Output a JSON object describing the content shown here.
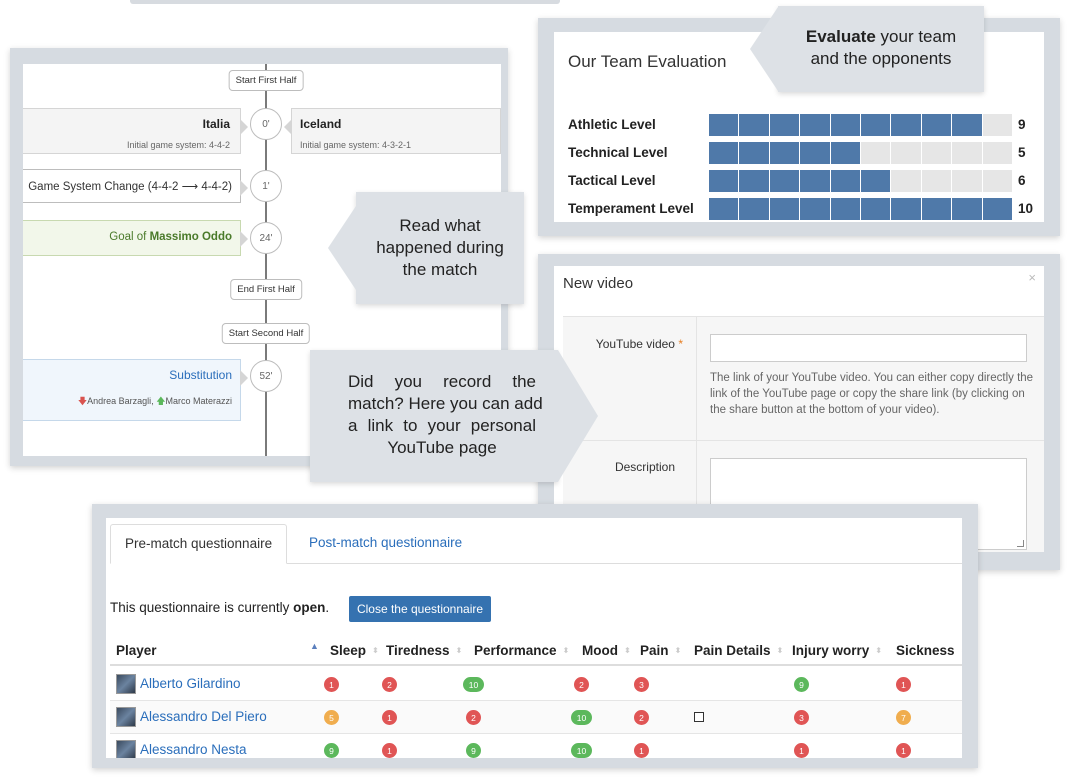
{
  "colors": {
    "bar_on": "#4f79a9",
    "bar_off": "#e6e6e6",
    "red": "#e05555",
    "green": "#5cb85c",
    "orange": "#f0ad4e",
    "link": "#2a6ebb",
    "button": "#3572b0"
  },
  "timeline": {
    "start_first_half": "Start First Half",
    "home_team": "Italia",
    "home_system": "Initial game system: 4-4-2",
    "away_team": "Iceland",
    "away_system": "Initial game system: 4-3-2-1",
    "minute_0": "0'",
    "system_change": "Game System Change (4-4-2 ⟶ 4-4-2)",
    "minute_1": "1'",
    "goal_prefix": "Goal of",
    "goal_player": "Massimo Oddo",
    "minute_24": "24'",
    "end_first_half": "End First Half",
    "start_second_half": "Start Second Half",
    "substitution": "Substitution",
    "sub_out": "Andrea Barzagli",
    "sub_in": "Marco Materazzi",
    "sub_sep": ",",
    "minute_52": "52'"
  },
  "callouts": {
    "evaluate_bold": "Evaluate",
    "evaluate_rest": "your team",
    "evaluate_line2": "and the opponents",
    "read_line1": "Read what",
    "read_line2": "happened during",
    "read_line3": "the match",
    "record_line1": "Did you record the",
    "record_line2": "match? Here you can add",
    "record_line3": "a link to your personal",
    "record_line4": "YouTube page"
  },
  "evaluation": {
    "title": "Our Team Evaluation",
    "max": 10,
    "rows": [
      {
        "label": "Athletic Level",
        "value": 9
      },
      {
        "label": "Technical Level",
        "value": 5
      },
      {
        "label": "Tactical Level",
        "value": 6
      },
      {
        "label": "Temperament Level",
        "value": 10
      }
    ]
  },
  "video": {
    "title": "New video",
    "close": "×",
    "youtube_label": "YouTube video",
    "required_mark": "*",
    "youtube_value": "",
    "help": "The link of your YouTube video. You can either copy directly the link of the YouTube page or copy the share link (by clicking on the share button at the bottom of your video).",
    "description_label": "Description",
    "description_value": ""
  },
  "questionnaire": {
    "tabs": [
      "Pre-match questionnaire",
      "Post-match questionnaire"
    ],
    "status_prefix": "This questionnaire is currently",
    "status_value": "open",
    "status_suffix": ".",
    "close_button": "Close the questionnaire",
    "columns": [
      "Player",
      "Sleep",
      "Tiredness",
      "Performance",
      "Mood",
      "Pain",
      "Pain Details",
      "Injury worry",
      "Sickness"
    ],
    "rows": [
      {
        "player": "Alberto Gilardino",
        "sleep": "1",
        "tiredness": "2",
        "performance": "10",
        "mood": "2",
        "pain": "3",
        "pain_details": "",
        "injury": "9",
        "sickness": "1"
      },
      {
        "player": "Alessandro Del Piero",
        "sleep": "5",
        "tiredness": "1",
        "performance": "2",
        "mood": "10",
        "pain": "2",
        "pain_details": "checkbox",
        "injury": "3",
        "sickness": "7"
      },
      {
        "player": "Alessandro Nesta",
        "sleep": "9",
        "tiredness": "1",
        "performance": "9",
        "mood": "10",
        "pain": "1",
        "pain_details": "",
        "injury": "1",
        "sickness": "1"
      }
    ]
  }
}
